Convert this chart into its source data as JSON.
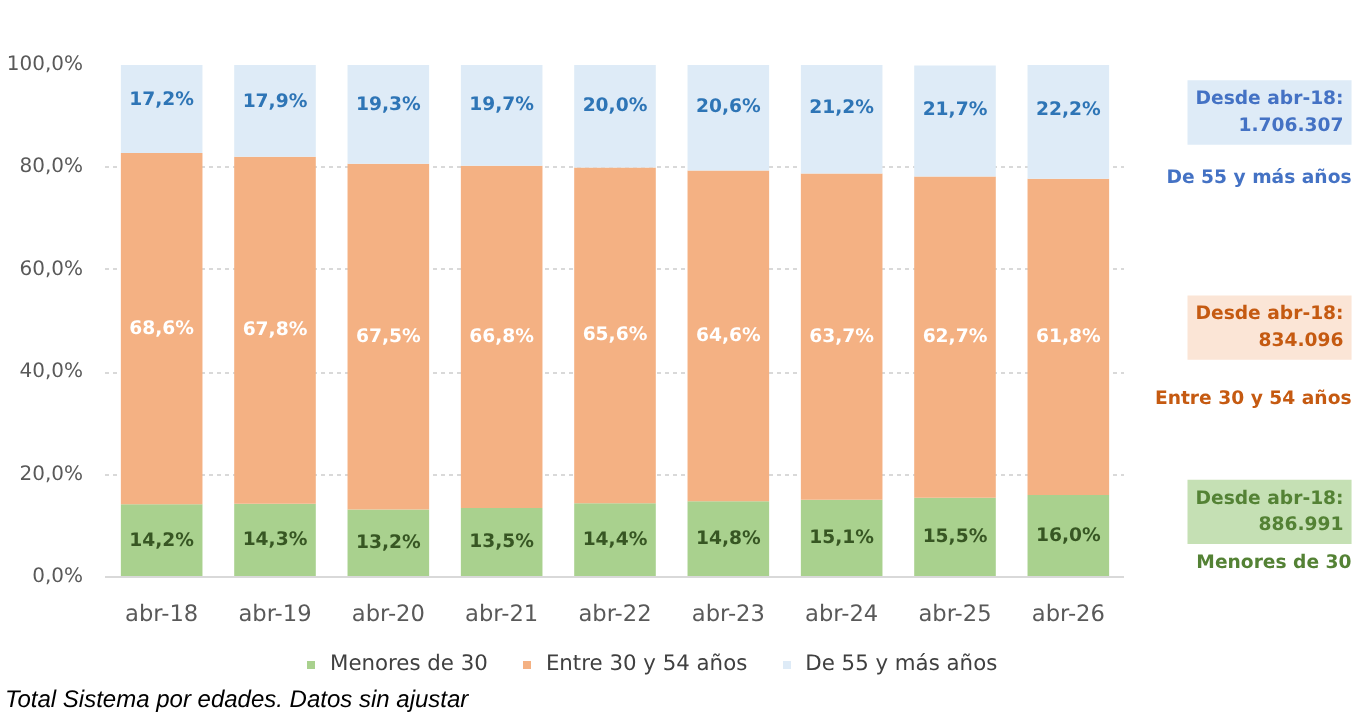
{
  "chart_data": {
    "type": "bar",
    "stacked": true,
    "categories": [
      "abr-18",
      "abr-19",
      "abr-20",
      "abr-21",
      "abr-22",
      "abr-23",
      "abr-24",
      "abr-25",
      "abr-26"
    ],
    "series": [
      {
        "name": "Menores de 30",
        "color": "#a9d18e",
        "values": [
          14.2,
          14.3,
          13.2,
          13.5,
          14.4,
          14.8,
          15.1,
          15.5,
          16.0
        ],
        "value_labels": [
          "14,2%",
          "14,3%",
          "13,2%",
          "13,5%",
          "14,4%",
          "14,8%",
          "15,1%",
          "15,5%",
          "16,0%"
        ]
      },
      {
        "name": "Entre 30 y 54 años",
        "color": "#f4b183",
        "values": [
          68.6,
          67.8,
          67.5,
          66.8,
          65.6,
          64.6,
          63.7,
          62.7,
          61.8
        ],
        "value_labels": [
          "68,6%",
          "67,8%",
          "67,5%",
          "66,8%",
          "65,6%",
          "64,6%",
          "63,7%",
          "62,7%",
          "61,8%"
        ]
      },
      {
        "name": "De 55 y más años",
        "color": "#deebf7",
        "values": [
          17.2,
          17.9,
          19.3,
          19.7,
          20.0,
          20.6,
          21.2,
          21.7,
          22.2
        ],
        "value_labels": [
          "17,2%",
          "17,9%",
          "19,3%",
          "19,7%",
          "20,0%",
          "20,6%",
          "21,2%",
          "21,7%",
          "22,2%"
        ]
      }
    ],
    "ylim": [
      0,
      100
    ],
    "yticks": [
      {
        "value": 0,
        "label": "0,0%"
      },
      {
        "value": 20,
        "label": "20,0%"
      },
      {
        "value": 40,
        "label": "40,0%"
      },
      {
        "value": 60,
        "label": "60,0%"
      },
      {
        "value": 80,
        "label": "80,0%"
      },
      {
        "value": 100,
        "label": "100,0%"
      }
    ],
    "grid": "y",
    "legend": "bottom",
    "annotations": [
      "Desde abr-18:\n1.706.307",
      "De 55 y más años",
      "Desde abr-18:\n834.096",
      "Entre 30 y 54 años",
      "Desde abr-18:\n886.991",
      "Menores de 30",
      "Total Sistema por edades. Datos sin ajustar"
    ]
  }
}
